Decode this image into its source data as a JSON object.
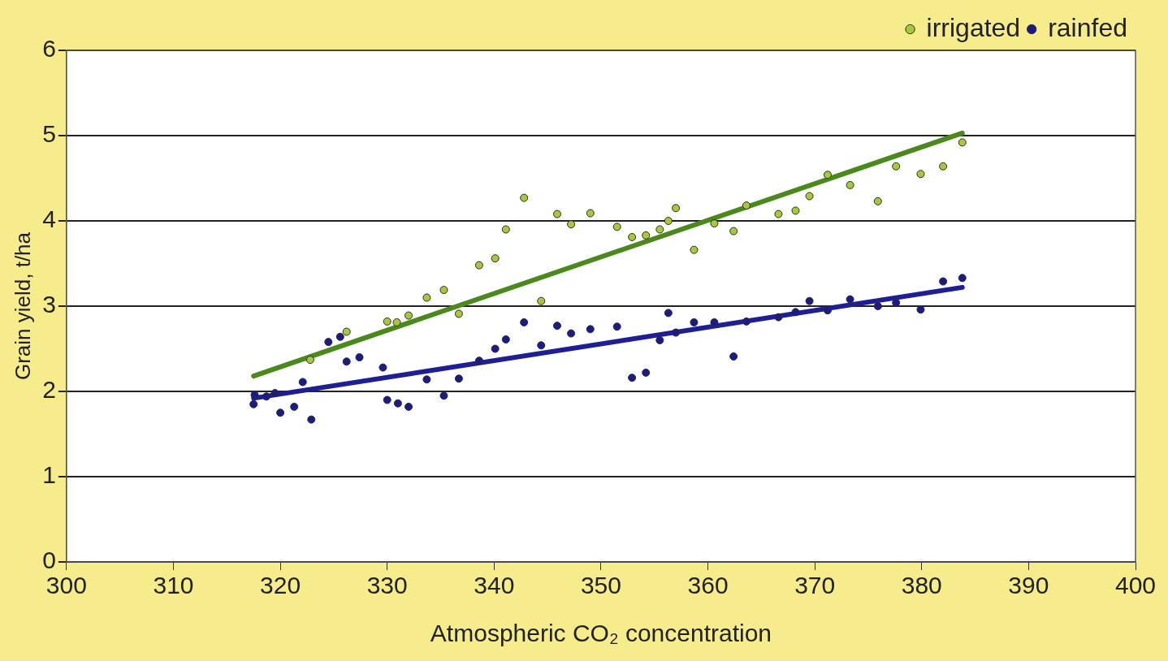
{
  "chart_data": {
    "type": "scatter",
    "xlabel": "Atmospheric CO₂ concentration",
    "ylabel": "Grain yield, t/ha",
    "xlim": [
      300,
      400
    ],
    "xticks": [
      300,
      310,
      320,
      330,
      340,
      350,
      360,
      370,
      380,
      390,
      400
    ],
    "ylim": [
      0,
      6
    ],
    "yticks": [
      0,
      1,
      2,
      3,
      4,
      5,
      6
    ],
    "grid": "y",
    "legend": "top right",
    "marker": "circle",
    "series": [
      {
        "name": "irrigated",
        "color": "#a8c83c",
        "x": [
          322.8,
          326.2,
          330.0,
          330.9,
          332.0,
          333.7,
          335.3,
          336.7,
          338.6,
          340.1,
          341.1,
          342.8,
          344.4,
          345.9,
          347.2,
          349.0,
          351.5,
          352.9,
          354.2,
          355.5,
          356.3,
          357.0,
          358.7,
          360.6,
          362.4,
          363.6,
          366.6,
          368.2,
          369.5,
          371.2,
          373.3,
          375.9,
          377.6,
          379.9,
          382.0,
          383.8
        ],
        "values": [
          2.37,
          2.7,
          2.82,
          2.81,
          2.89,
          3.1,
          3.19,
          2.91,
          3.48,
          3.56,
          3.9,
          4.27,
          3.06,
          4.08,
          3.96,
          4.09,
          3.93,
          3.81,
          3.83,
          3.9,
          4.0,
          4.15,
          3.66,
          3.97,
          3.88,
          4.18,
          4.08,
          4.12,
          4.29,
          4.54,
          4.42,
          4.23,
          4.64,
          4.55,
          4.64,
          4.92
        ]
      },
      {
        "name": "rainfed",
        "color": "#1a1a8c",
        "x": [
          317.5,
          317.6,
          318.7,
          319.5,
          320.0,
          321.3,
          322.1,
          322.9,
          324.5,
          325.6,
          326.2,
          327.4,
          329.6,
          330.0,
          331.0,
          332.0,
          333.7,
          335.3,
          336.7,
          338.6,
          340.1,
          341.1,
          342.8,
          344.4,
          345.9,
          347.2,
          349.0,
          351.5,
          352.9,
          354.2,
          355.5,
          356.3,
          357.0,
          358.7,
          360.6,
          362.4,
          363.6,
          366.6,
          368.2,
          369.5,
          371.2,
          373.3,
          375.9,
          377.6,
          379.9,
          382.0,
          383.8
        ],
        "values": [
          1.85,
          1.96,
          1.94,
          1.98,
          1.75,
          1.82,
          2.11,
          1.67,
          2.58,
          2.64,
          2.35,
          2.4,
          2.28,
          1.9,
          1.86,
          1.82,
          2.14,
          1.95,
          2.15,
          2.36,
          2.5,
          2.61,
          2.81,
          2.54,
          2.77,
          2.68,
          2.73,
          2.76,
          2.16,
          2.22,
          2.6,
          2.92,
          2.69,
          2.81,
          2.81,
          2.41,
          2.82,
          2.87,
          2.93,
          3.06,
          2.95,
          3.08,
          3.0,
          3.04,
          2.96,
          3.29,
          3.33
        ]
      },
      {
        "type": "line",
        "marker": "none",
        "color": "#4a8a1c",
        "x": [
          317.5,
          383.8
        ],
        "values": [
          2.18,
          5.03
        ]
      },
      {
        "type": "line",
        "marker": "none",
        "color": "#1e1e96",
        "x": [
          317.5,
          383.8
        ],
        "values": [
          1.92,
          3.22
        ]
      }
    ]
  }
}
